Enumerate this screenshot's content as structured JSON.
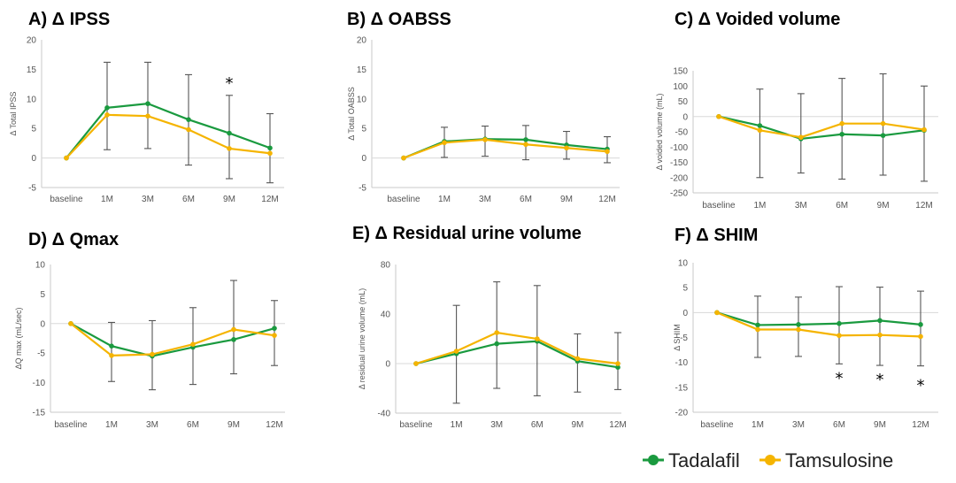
{
  "legend": {
    "items": [
      {
        "label": "Tadalafil",
        "color": "#1a9a3f"
      },
      {
        "label": "Tamsulosine",
        "color": "#f5b400"
      }
    ]
  },
  "chart_data": [
    {
      "type": "line",
      "title": "A) Δ IPSS",
      "ylabel": "Δ Total IPSS",
      "categories": [
        "baseline",
        "1M",
        "3M",
        "6M",
        "9M",
        "12M"
      ],
      "ylim": [
        -5,
        20
      ],
      "yticks": [
        -5,
        0,
        5,
        10,
        15,
        20
      ],
      "series": [
        {
          "name": "Tadalafil",
          "values": [
            0,
            8.5,
            9.2,
            6.5,
            4.2,
            1.7
          ]
        },
        {
          "name": "Tamsulosine",
          "values": [
            0,
            7.3,
            7.1,
            4.8,
            1.6,
            0.8
          ]
        }
      ],
      "error_bars": [
        null,
        [
          1.4,
          16.2
        ],
        [
          1.6,
          16.2
        ],
        [
          -1.2,
          14.1
        ],
        [
          -3.5,
          10.6
        ],
        [
          -4.2,
          7.5
        ]
      ],
      "significance": [
        "",
        "",
        "",
        "",
        "*",
        ""
      ]
    },
    {
      "type": "line",
      "title": "B) Δ OABSS",
      "ylabel": "Δ Total OABSS",
      "categories": [
        "baseline",
        "1M",
        "3M",
        "6M",
        "9M",
        "12M"
      ],
      "ylim": [
        -5,
        20
      ],
      "yticks": [
        -5,
        0,
        5,
        10,
        15,
        20
      ],
      "series": [
        {
          "name": "Tadalafil",
          "values": [
            0,
            2.8,
            3.2,
            3.1,
            2.2,
            1.5
          ]
        },
        {
          "name": "Tamsulosine",
          "values": [
            0,
            2.6,
            3.1,
            2.3,
            1.7,
            1.1
          ]
        }
      ],
      "error_bars": [
        null,
        [
          0.1,
          5.2
        ],
        [
          0.3,
          5.4
        ],
        [
          -0.3,
          5.5
        ],
        [
          -0.2,
          4.5
        ],
        [
          -0.8,
          3.6
        ]
      ],
      "significance": [
        "",
        "",
        "",
        "",
        "",
        ""
      ]
    },
    {
      "type": "line",
      "title": "C) Δ Voided volume",
      "ylabel": "Δ voided volume (mL)",
      "categories": [
        "baseline",
        "1M",
        "3M",
        "6M",
        "9M",
        "12M"
      ],
      "ylim": [
        -250,
        150
      ],
      "yticks": [
        -250,
        -200,
        -150,
        -100,
        -50,
        0,
        50,
        100,
        150
      ],
      "series": [
        {
          "name": "Tadalafil",
          "values": [
            0,
            -30,
            -73,
            -58,
            -62,
            -45
          ]
        },
        {
          "name": "Tamsulosine",
          "values": [
            0,
            -45,
            -68,
            -23,
            -23,
            -43
          ]
        }
      ],
      "error_bars": [
        null,
        [
          -200,
          90
        ],
        [
          -185,
          75
        ],
        [
          -205,
          125
        ],
        [
          -192,
          140
        ],
        [
          -212,
          100
        ]
      ],
      "significance": [
        "",
        "",
        "",
        "",
        "",
        ""
      ]
    },
    {
      "type": "line",
      "title": "D) Δ Qmax",
      "ylabel": "ΔQ max (mL/sec)",
      "categories": [
        "baseline",
        "1M",
        "3M",
        "6M",
        "9M",
        "12M"
      ],
      "ylim": [
        -15,
        10
      ],
      "yticks": [
        -15,
        -10,
        -5,
        0,
        5,
        10
      ],
      "series": [
        {
          "name": "Tadalafil",
          "values": [
            0,
            -3.8,
            -5.5,
            -4.0,
            -2.7,
            -0.8
          ]
        },
        {
          "name": "Tamsulosine",
          "values": [
            0,
            -5.4,
            -5.2,
            -3.5,
            -1.0,
            -2.0
          ]
        }
      ],
      "error_bars": [
        null,
        [
          -9.8,
          0.2
        ],
        [
          -11.2,
          0.5
        ],
        [
          -10.3,
          2.7
        ],
        [
          -8.5,
          7.3
        ],
        [
          -7.1,
          3.9
        ]
      ],
      "significance": [
        "",
        "",
        "",
        "",
        "",
        ""
      ]
    },
    {
      "type": "line",
      "title": "E) Δ Residual urine volume",
      "ylabel": "Δ residual urine volume (mL)",
      "categories": [
        "baseline",
        "1M",
        "3M",
        "6M",
        "9M",
        "12M"
      ],
      "ylim": [
        -40,
        80
      ],
      "yticks": [
        -40,
        0,
        40,
        80
      ],
      "series": [
        {
          "name": "Tadalafil",
          "values": [
            0,
            8,
            16,
            18,
            2,
            -3
          ]
        },
        {
          "name": "Tamsulosine",
          "values": [
            0,
            10,
            25,
            20,
            4,
            0
          ]
        }
      ],
      "error_bars": [
        null,
        [
          -32,
          47
        ],
        [
          -20,
          66
        ],
        [
          -26,
          63
        ],
        [
          -23,
          24
        ],
        [
          -21,
          25
        ]
      ],
      "significance": [
        "",
        "",
        "",
        "",
        "",
        ""
      ]
    },
    {
      "type": "line",
      "title": "F) Δ SHIM",
      "ylabel": "Δ SHIM",
      "categories": [
        "baseline",
        "1M",
        "3M",
        "6M",
        "9M",
        "12M"
      ],
      "ylim": [
        -20,
        10
      ],
      "yticks": [
        -20,
        -15,
        -10,
        -5,
        0,
        5,
        10
      ],
      "series": [
        {
          "name": "Tadalafil",
          "values": [
            0,
            -2.5,
            -2.4,
            -2.2,
            -1.6,
            -2.4
          ]
        },
        {
          "name": "Tamsulosine",
          "values": [
            0,
            -3.4,
            -3.4,
            -4.6,
            -4.5,
            -4.8
          ]
        }
      ],
      "error_bars": [
        null,
        [
          -9,
          3.3
        ],
        [
          -8.8,
          3.1
        ],
        [
          -10.3,
          5.2
        ],
        [
          -10.6,
          5.1
        ],
        [
          -10.7,
          4.3
        ]
      ],
      "significance": [
        "",
        "",
        "",
        "*",
        "*",
        "*"
      ]
    }
  ]
}
